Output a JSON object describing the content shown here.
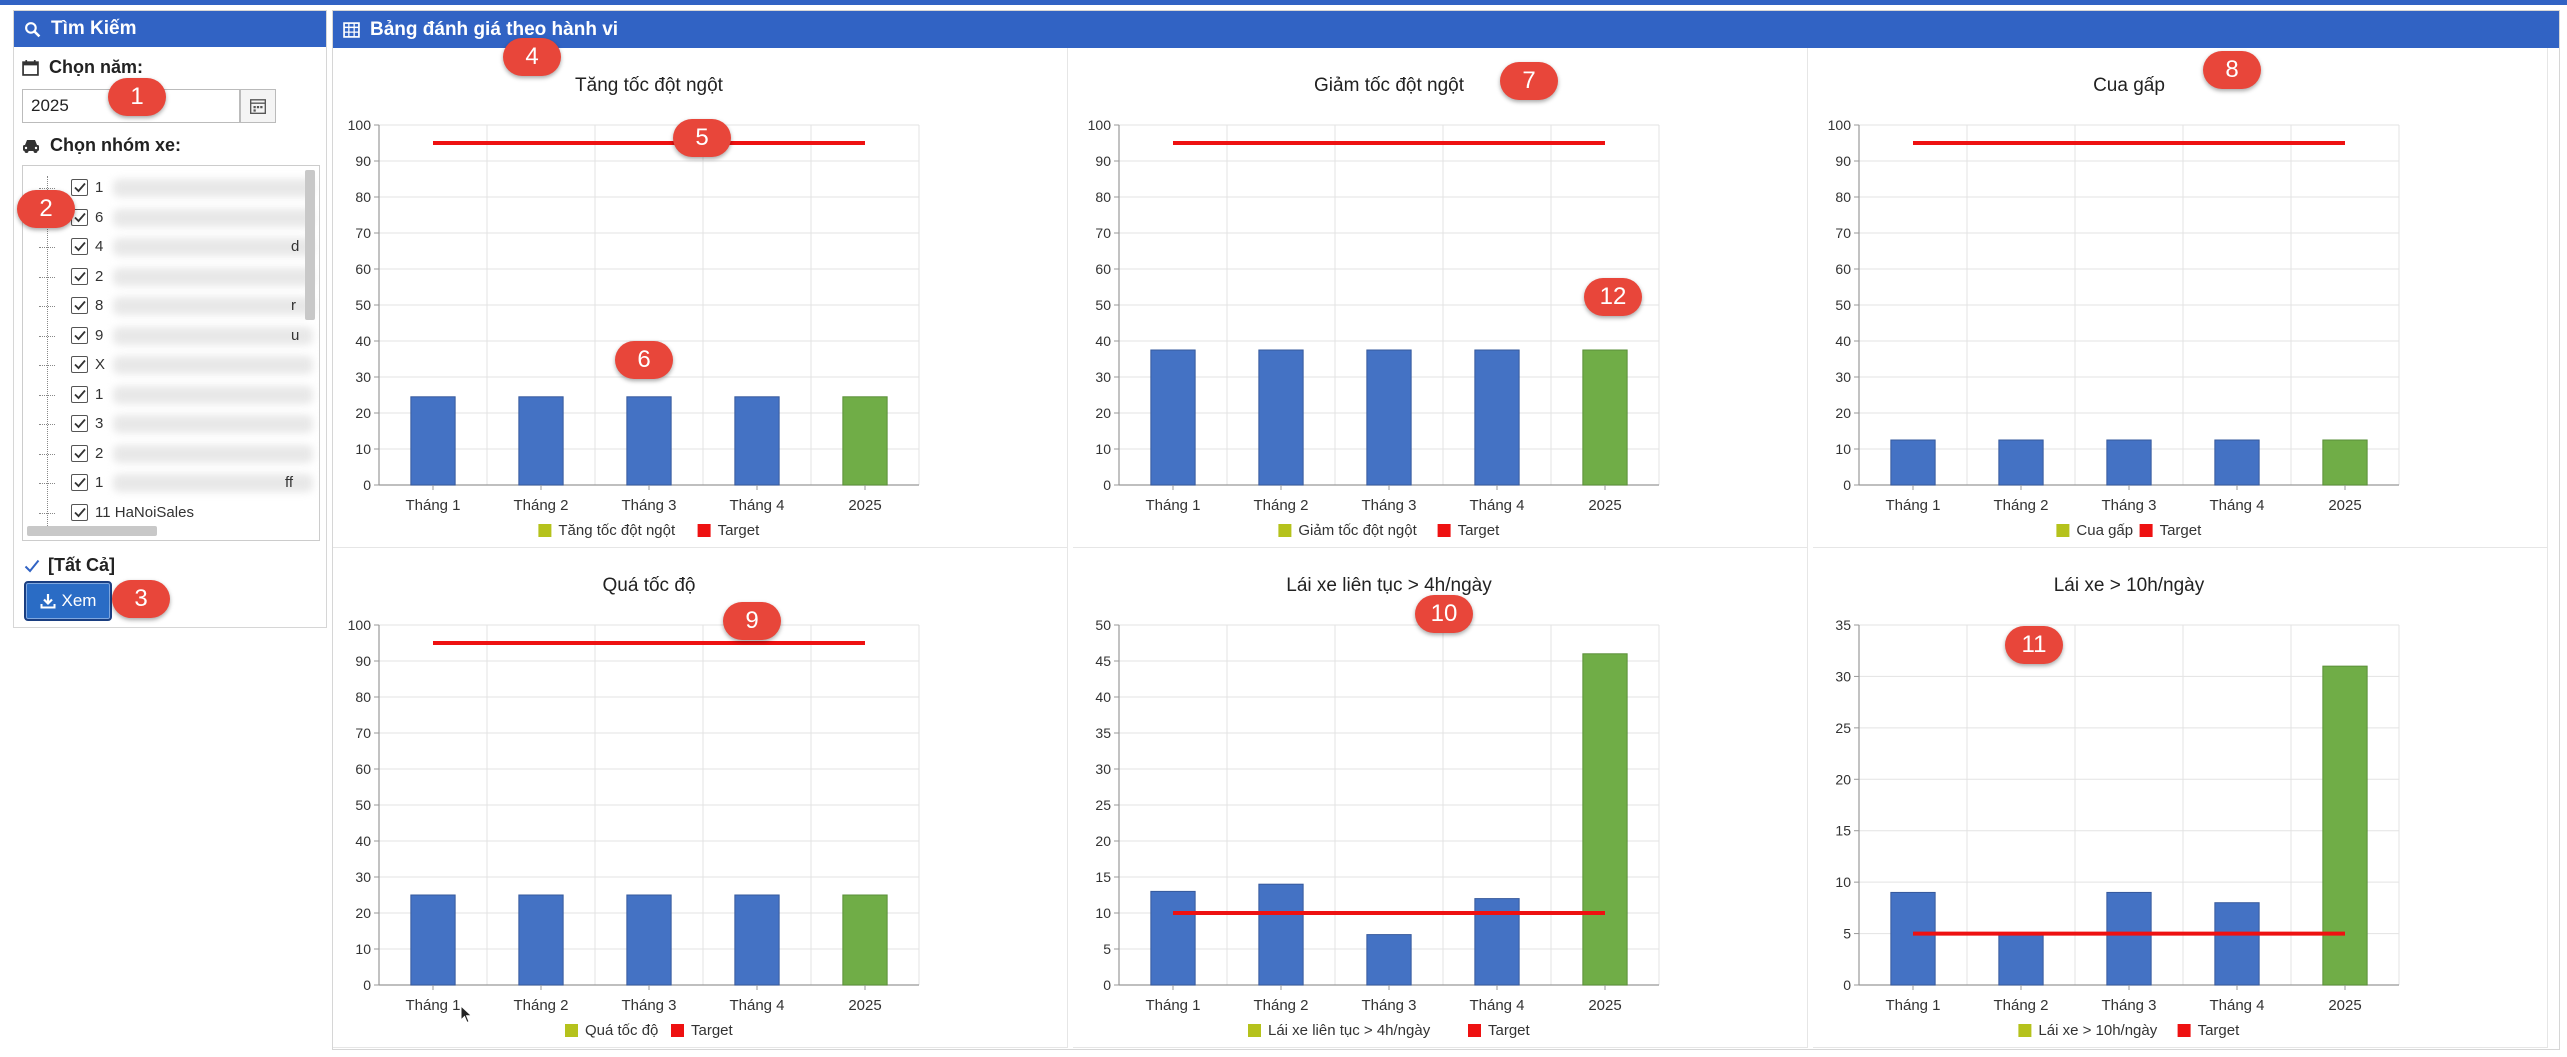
{
  "search_panel": {
    "title": "Tìm Kiếm",
    "year_label": "Chọn năm:",
    "year_value": "2025",
    "group_label": "Chọn nhóm xe:",
    "tree_items": [
      {
        "text": "1",
        "tail": ""
      },
      {
        "text": "6",
        "tail": ""
      },
      {
        "text": "4",
        "tail": "d"
      },
      {
        "text": "2",
        "tail": ""
      },
      {
        "text": "8",
        "tail": "r"
      },
      {
        "text": "9",
        "tail": "u"
      },
      {
        "text": "X",
        "tail": ""
      },
      {
        "text": "1",
        "tail": ""
      },
      {
        "text": "3",
        "tail": ""
      },
      {
        "text": "2",
        "tail": ""
      },
      {
        "text": "1",
        "tail": "ff"
      },
      {
        "text": "11 HaNoiSales",
        "tail": ""
      }
    ],
    "all_label": "[Tất Cả]",
    "view_button": "Xem"
  },
  "main_panel": {
    "title": "Bảng đánh giá theo hành vi"
  },
  "colors": {
    "header_bg": "#3163c4",
    "bar_blue": "#4472c4",
    "bar_green": "#70ad47",
    "legend_series": "#b5c21c",
    "target_red": "#ee1111",
    "badge": "#e8463a"
  },
  "annotations": [
    "1",
    "2",
    "3",
    "4",
    "5",
    "6",
    "7",
    "8",
    "9",
    "10",
    "11",
    "12"
  ],
  "chart_data": [
    {
      "type": "bar",
      "title": "Tăng tốc đột ngột",
      "categories": [
        "Tháng 1",
        "Tháng 2",
        "Tháng 3",
        "Tháng 4",
        "2025"
      ],
      "series": [
        {
          "name": "Tăng tốc đột ngột",
          "values": [
            24.5,
            24.5,
            24.5,
            24.5,
            24.5
          ]
        },
        {
          "name": "Target",
          "values": [
            95,
            95,
            95,
            95,
            95
          ]
        }
      ],
      "ylim": [
        0,
        100
      ],
      "yticks": [
        0,
        10,
        20,
        30,
        40,
        50,
        60,
        70,
        80,
        90,
        100
      ],
      "grid": true,
      "legend": "bottom"
    },
    {
      "type": "bar",
      "title": "Giảm tốc đột ngột",
      "categories": [
        "Tháng 1",
        "Tháng 2",
        "Tháng 3",
        "Tháng 4",
        "2025"
      ],
      "series": [
        {
          "name": "Giảm tốc đột ngột",
          "values": [
            37.5,
            37.5,
            37.5,
            37.5,
            37.5
          ]
        },
        {
          "name": "Target",
          "values": [
            95,
            95,
            95,
            95,
            95
          ]
        }
      ],
      "ylim": [
        0,
        100
      ],
      "yticks": [
        0,
        10,
        20,
        30,
        40,
        50,
        60,
        70,
        80,
        90,
        100
      ],
      "grid": true,
      "legend": "bottom"
    },
    {
      "type": "bar",
      "title": "Cua gấp",
      "categories": [
        "Tháng 1",
        "Tháng 2",
        "Tháng 3",
        "Tháng 4",
        "2025"
      ],
      "series": [
        {
          "name": "Cua gấp",
          "values": [
            12.5,
            12.5,
            12.5,
            12.5,
            12.5
          ]
        },
        {
          "name": "Target",
          "values": [
            95,
            95,
            95,
            95,
            95
          ]
        }
      ],
      "ylim": [
        0,
        100
      ],
      "yticks": [
        0,
        10,
        20,
        30,
        40,
        50,
        60,
        70,
        80,
        90,
        100
      ],
      "grid": true,
      "legend": "bottom"
    },
    {
      "type": "bar",
      "title": "Quá tốc độ",
      "categories": [
        "Tháng 1",
        "Tháng 2",
        "Tháng 3",
        "Tháng 4",
        "2025"
      ],
      "series": [
        {
          "name": "Quá tốc độ",
          "values": [
            25,
            25,
            25,
            25,
            25
          ]
        },
        {
          "name": "Target",
          "values": [
            95,
            95,
            95,
            95,
            95
          ]
        }
      ],
      "ylim": [
        0,
        100
      ],
      "yticks": [
        0,
        10,
        20,
        30,
        40,
        50,
        60,
        70,
        80,
        90,
        100
      ],
      "grid": true,
      "legend": "bottom"
    },
    {
      "type": "bar",
      "title": "Lái xe liên tục > 4h/ngày",
      "categories": [
        "Tháng 1",
        "Tháng 2",
        "Tháng 3",
        "Tháng 4",
        "2025"
      ],
      "series": [
        {
          "name": "Lái xe liên tục > 4h/ngày",
          "values": [
            13,
            14,
            7,
            12,
            46
          ]
        },
        {
          "name": "Target",
          "values": [
            10,
            10,
            10,
            10,
            10
          ]
        }
      ],
      "ylim": [
        0,
        50
      ],
      "yticks": [
        0,
        5,
        10,
        15,
        20,
        25,
        30,
        35,
        40,
        45,
        50
      ],
      "grid": true,
      "legend": "bottom"
    },
    {
      "type": "bar",
      "title": "Lái xe > 10h/ngày",
      "categories": [
        "Tháng 1",
        "Tháng 2",
        "Tháng 3",
        "Tháng 4",
        "2025"
      ],
      "series": [
        {
          "name": "Lái xe > 10h/ngày",
          "values": [
            9,
            5,
            9,
            8,
            31
          ]
        },
        {
          "name": "Target",
          "values": [
            5,
            5,
            5,
            5,
            5
          ]
        }
      ],
      "ylim": [
        0,
        35
      ],
      "yticks": [
        0,
        5,
        10,
        15,
        20,
        25,
        30,
        35
      ],
      "grid": true,
      "legend": "bottom"
    }
  ]
}
